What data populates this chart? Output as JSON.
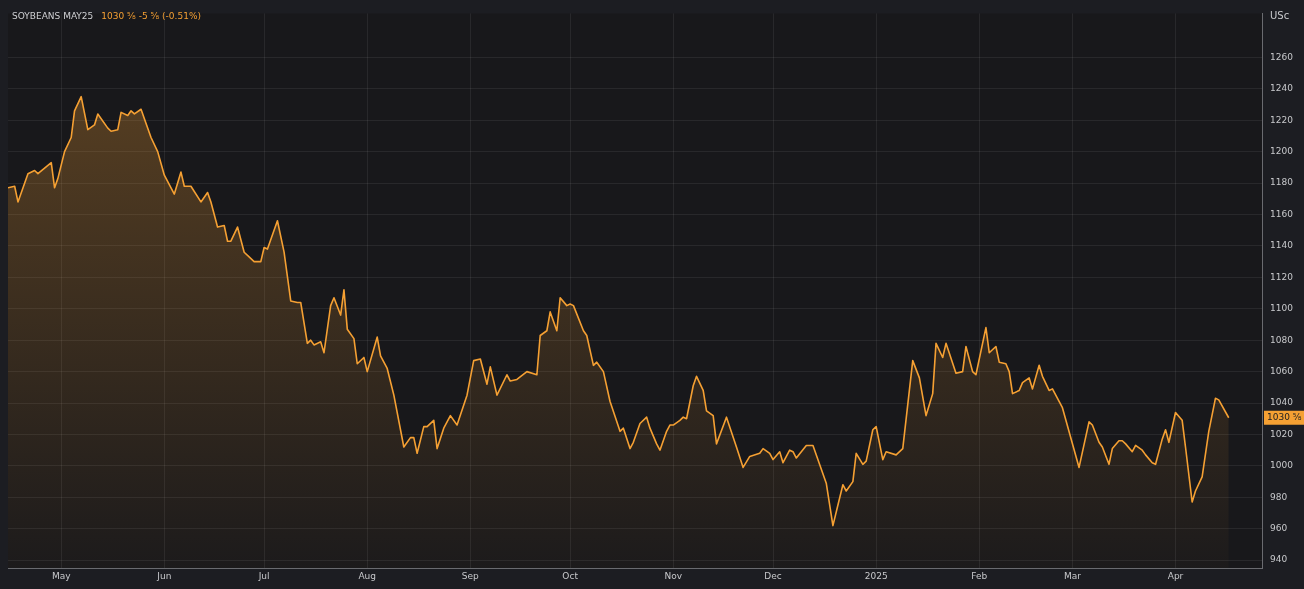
{
  "chart_data": {
    "type": "area",
    "title": "SOYBEANS MAY25",
    "subtitle": "1030 ⅝  -5 ⅝ (-0.51%)",
    "ylabel": "USc",
    "x": [
      "2024-04-15",
      "2024-04-17",
      "2024-04-18",
      "2024-04-21",
      "2024-04-23",
      "2024-04-24",
      "2024-04-28",
      "2024-04-29",
      "2024-04-30",
      "2024-05-02",
      "2024-05-04",
      "2024-05-05",
      "2024-05-07",
      "2024-05-09",
      "2024-05-11",
      "2024-05-12",
      "2024-05-15",
      "2024-05-16",
      "2024-05-18",
      "2024-05-19",
      "2024-05-21",
      "2024-05-22",
      "2024-05-23",
      "2024-05-25",
      "2024-05-26",
      "2024-05-28",
      "2024-05-30",
      "2024-06-01",
      "2024-06-04",
      "2024-06-06",
      "2024-06-07",
      "2024-06-09",
      "2024-06-12",
      "2024-06-14",
      "2024-06-15",
      "2024-06-17",
      "2024-06-19",
      "2024-06-20",
      "2024-06-21",
      "2024-06-23",
      "2024-06-25",
      "2024-06-28",
      "2024-06-30",
      "2024-07-01",
      "2024-07-02",
      "2024-07-05",
      "2024-07-07",
      "2024-07-09",
      "2024-07-11",
      "2024-07-12",
      "2024-07-14",
      "2024-07-15",
      "2024-07-16",
      "2024-07-18",
      "2024-07-19",
      "2024-07-21",
      "2024-07-22",
      "2024-07-24",
      "2024-07-25",
      "2024-07-26",
      "2024-07-28",
      "2024-07-29",
      "2024-07-31",
      "2024-08-01",
      "2024-08-04",
      "2024-08-05",
      "2024-08-07",
      "2024-08-09",
      "2024-08-12",
      "2024-08-14",
      "2024-08-15",
      "2024-08-16",
      "2024-08-18",
      "2024-08-19",
      "2024-08-21",
      "2024-08-22",
      "2024-08-24",
      "2024-08-26",
      "2024-08-28",
      "2024-08-31",
      "2024-09-02",
      "2024-09-04",
      "2024-09-06",
      "2024-09-07",
      "2024-09-09",
      "2024-09-12",
      "2024-09-13",
      "2024-09-15",
      "2024-09-18",
      "2024-09-21",
      "2024-09-22",
      "2024-09-24",
      "2024-09-25",
      "2024-09-27",
      "2024-09-28",
      "2024-09-30",
      "2024-10-01",
      "2024-10-02",
      "2024-10-05",
      "2024-10-06",
      "2024-10-08",
      "2024-10-09",
      "2024-10-11",
      "2024-10-13",
      "2024-10-16",
      "2024-10-17",
      "2024-10-19",
      "2024-10-20",
      "2024-10-22",
      "2024-10-24",
      "2024-10-25",
      "2024-10-27",
      "2024-10-28",
      "2024-10-30",
      "2024-10-31",
      "2024-11-01",
      "2024-11-03",
      "2024-11-04",
      "2024-11-05",
      "2024-11-07",
      "2024-11-08",
      "2024-11-10",
      "2024-11-11",
      "2024-11-13",
      "2024-11-14",
      "2024-11-17",
      "2024-11-20",
      "2024-11-22",
      "2024-11-24",
      "2024-11-27",
      "2024-11-28",
      "2024-11-30",
      "2024-12-01",
      "2024-12-03",
      "2024-12-04",
      "2024-12-06",
      "2024-12-07",
      "2024-12-08",
      "2024-12-11",
      "2024-12-13",
      "2024-12-17",
      "2024-12-19",
      "2024-12-22",
      "2024-12-23",
      "2024-12-25",
      "2024-12-26",
      "2024-12-28",
      "2024-12-29",
      "2024-12-31",
      "2025-01-01",
      "2025-01-03",
      "2025-01-04",
      "2025-01-07",
      "2025-01-09",
      "2025-01-12",
      "2025-01-14",
      "2025-01-16",
      "2025-01-18",
      "2025-01-19",
      "2025-01-21",
      "2025-01-22",
      "2025-01-25",
      "2025-01-27",
      "2025-01-28",
      "2025-01-30",
      "2025-01-31",
      "2025-02-03",
      "2025-02-04",
      "2025-02-06",
      "2025-02-07",
      "2025-02-09",
      "2025-02-10",
      "2025-02-11",
      "2025-02-13",
      "2025-02-14",
      "2025-02-16",
      "2025-02-17",
      "2025-02-19",
      "2025-02-20",
      "2025-02-22",
      "2025-02-23",
      "2025-02-25",
      "2025-02-26",
      "2025-03-03",
      "2025-03-06",
      "2025-03-07",
      "2025-03-09",
      "2025-03-10",
      "2025-03-12",
      "2025-03-13",
      "2025-03-15",
      "2025-03-16",
      "2025-03-17",
      "2025-03-19",
      "2025-03-20",
      "2025-03-22",
      "2025-03-23",
      "2025-03-25",
      "2025-03-26",
      "2025-03-28",
      "2025-03-29",
      "2025-03-30",
      "2025-04-01",
      "2025-04-03",
      "2025-04-04",
      "2025-04-06",
      "2025-04-07",
      "2025-04-09",
      "2025-04-11",
      "2025-04-13",
      "2025-04-14",
      "2025-04-17"
    ],
    "series": [
      {
        "color": "#f5a033",
        "values": [
          1177,
          1178,
          1168,
          1186,
          1188,
          1186,
          1193,
          1177,
          1183,
          1200,
          1209,
          1226,
          1235,
          1214,
          1217,
          1224,
          1215,
          1213,
          1214,
          1225,
          1223,
          1226,
          1224,
          1227,
          1221,
          1209,
          1200,
          1185,
          1173,
          1187,
          1178,
          1178,
          1168,
          1174,
          1168,
          1152,
          1153,
          1143,
          1143,
          1152,
          1136,
          1130,
          1130,
          1139,
          1138,
          1156,
          1136,
          1105,
          1104,
          1104,
          1078,
          1080,
          1077,
          1079,
          1072,
          1102,
          1107,
          1096,
          1112,
          1087,
          1081,
          1065,
          1069,
          1060,
          1082,
          1070,
          1062,
          1045,
          1012,
          1018,
          1018,
          1008,
          1025,
          1025,
          1029,
          1011,
          1024,
          1032,
          1026,
          1045,
          1067,
          1068,
          1052,
          1063,
          1045,
          1058,
          1054,
          1055,
          1060,
          1058,
          1083,
          1086,
          1098,
          1086,
          1107,
          1102,
          1103,
          1102,
          1086,
          1083,
          1064,
          1066,
          1060,
          1041,
          1022,
          1024,
          1011,
          1015,
          1027,
          1031,
          1024,
          1014,
          1010,
          1022,
          1026,
          1026,
          1029,
          1031,
          1030,
          1051,
          1057,
          1048,
          1035,
          1032,
          1014,
          1031,
          1012,
          999,
          1006,
          1008,
          1011,
          1008,
          1004,
          1009,
          1002,
          1010,
          1009,
          1005,
          1013,
          1013,
          989,
          962,
          988,
          984,
          990,
          1008,
          1001,
          1003,
          1023,
          1025,
          1004,
          1009,
          1007,
          1011,
          1067,
          1056,
          1032,
          1046,
          1078,
          1069,
          1078,
          1059,
          1060,
          1076,
          1060,
          1058,
          1088,
          1072,
          1076,
          1066,
          1065,
          1060,
          1046,
          1048,
          1053,
          1056,
          1049,
          1064,
          1057,
          1048,
          1049,
          1041,
          1037,
          999,
          1028,
          1026,
          1015,
          1012,
          1001,
          1011,
          1016,
          1016,
          1014,
          1009,
          1013,
          1010,
          1007,
          1002,
          1001,
          1017,
          1023,
          1015,
          1034,
          1029,
          1012,
          977,
          984,
          993,
          1022,
          1043,
          1042,
          1030.625
        ]
      }
    ],
    "xlim": [
      "2024-04-15",
      "2025-04-27"
    ],
    "xticks": [
      {
        "value": "2024-05-01",
        "label": "May"
      },
      {
        "value": "2024-06-01",
        "label": "Jun"
      },
      {
        "value": "2024-07-01",
        "label": "Jul"
      },
      {
        "value": "2024-08-01",
        "label": "Aug"
      },
      {
        "value": "2024-09-01",
        "label": "Sep"
      },
      {
        "value": "2024-10-01",
        "label": "Oct"
      },
      {
        "value": "2024-11-01",
        "label": "Nov"
      },
      {
        "value": "2024-12-01",
        "label": "Dec"
      },
      {
        "value": "2025-01-01",
        "label": "2025"
      },
      {
        "value": "2025-02-01",
        "label": "Feb"
      },
      {
        "value": "2025-03-01",
        "label": "Mar"
      },
      {
        "value": "2025-04-01",
        "label": "Apr"
      }
    ],
    "ylim": [
      935,
      1288
    ],
    "yticks": [
      940,
      960,
      980,
      1000,
      1020,
      1040,
      1060,
      1080,
      1100,
      1120,
      1140,
      1160,
      1180,
      1200,
      1220,
      1240,
      1260
    ],
    "annotations": [
      {
        "text": "1030 ⅝",
        "y": 1030.625
      }
    ],
    "grid": true,
    "legend": false,
    "marker": "none",
    "line_style": "solid"
  }
}
